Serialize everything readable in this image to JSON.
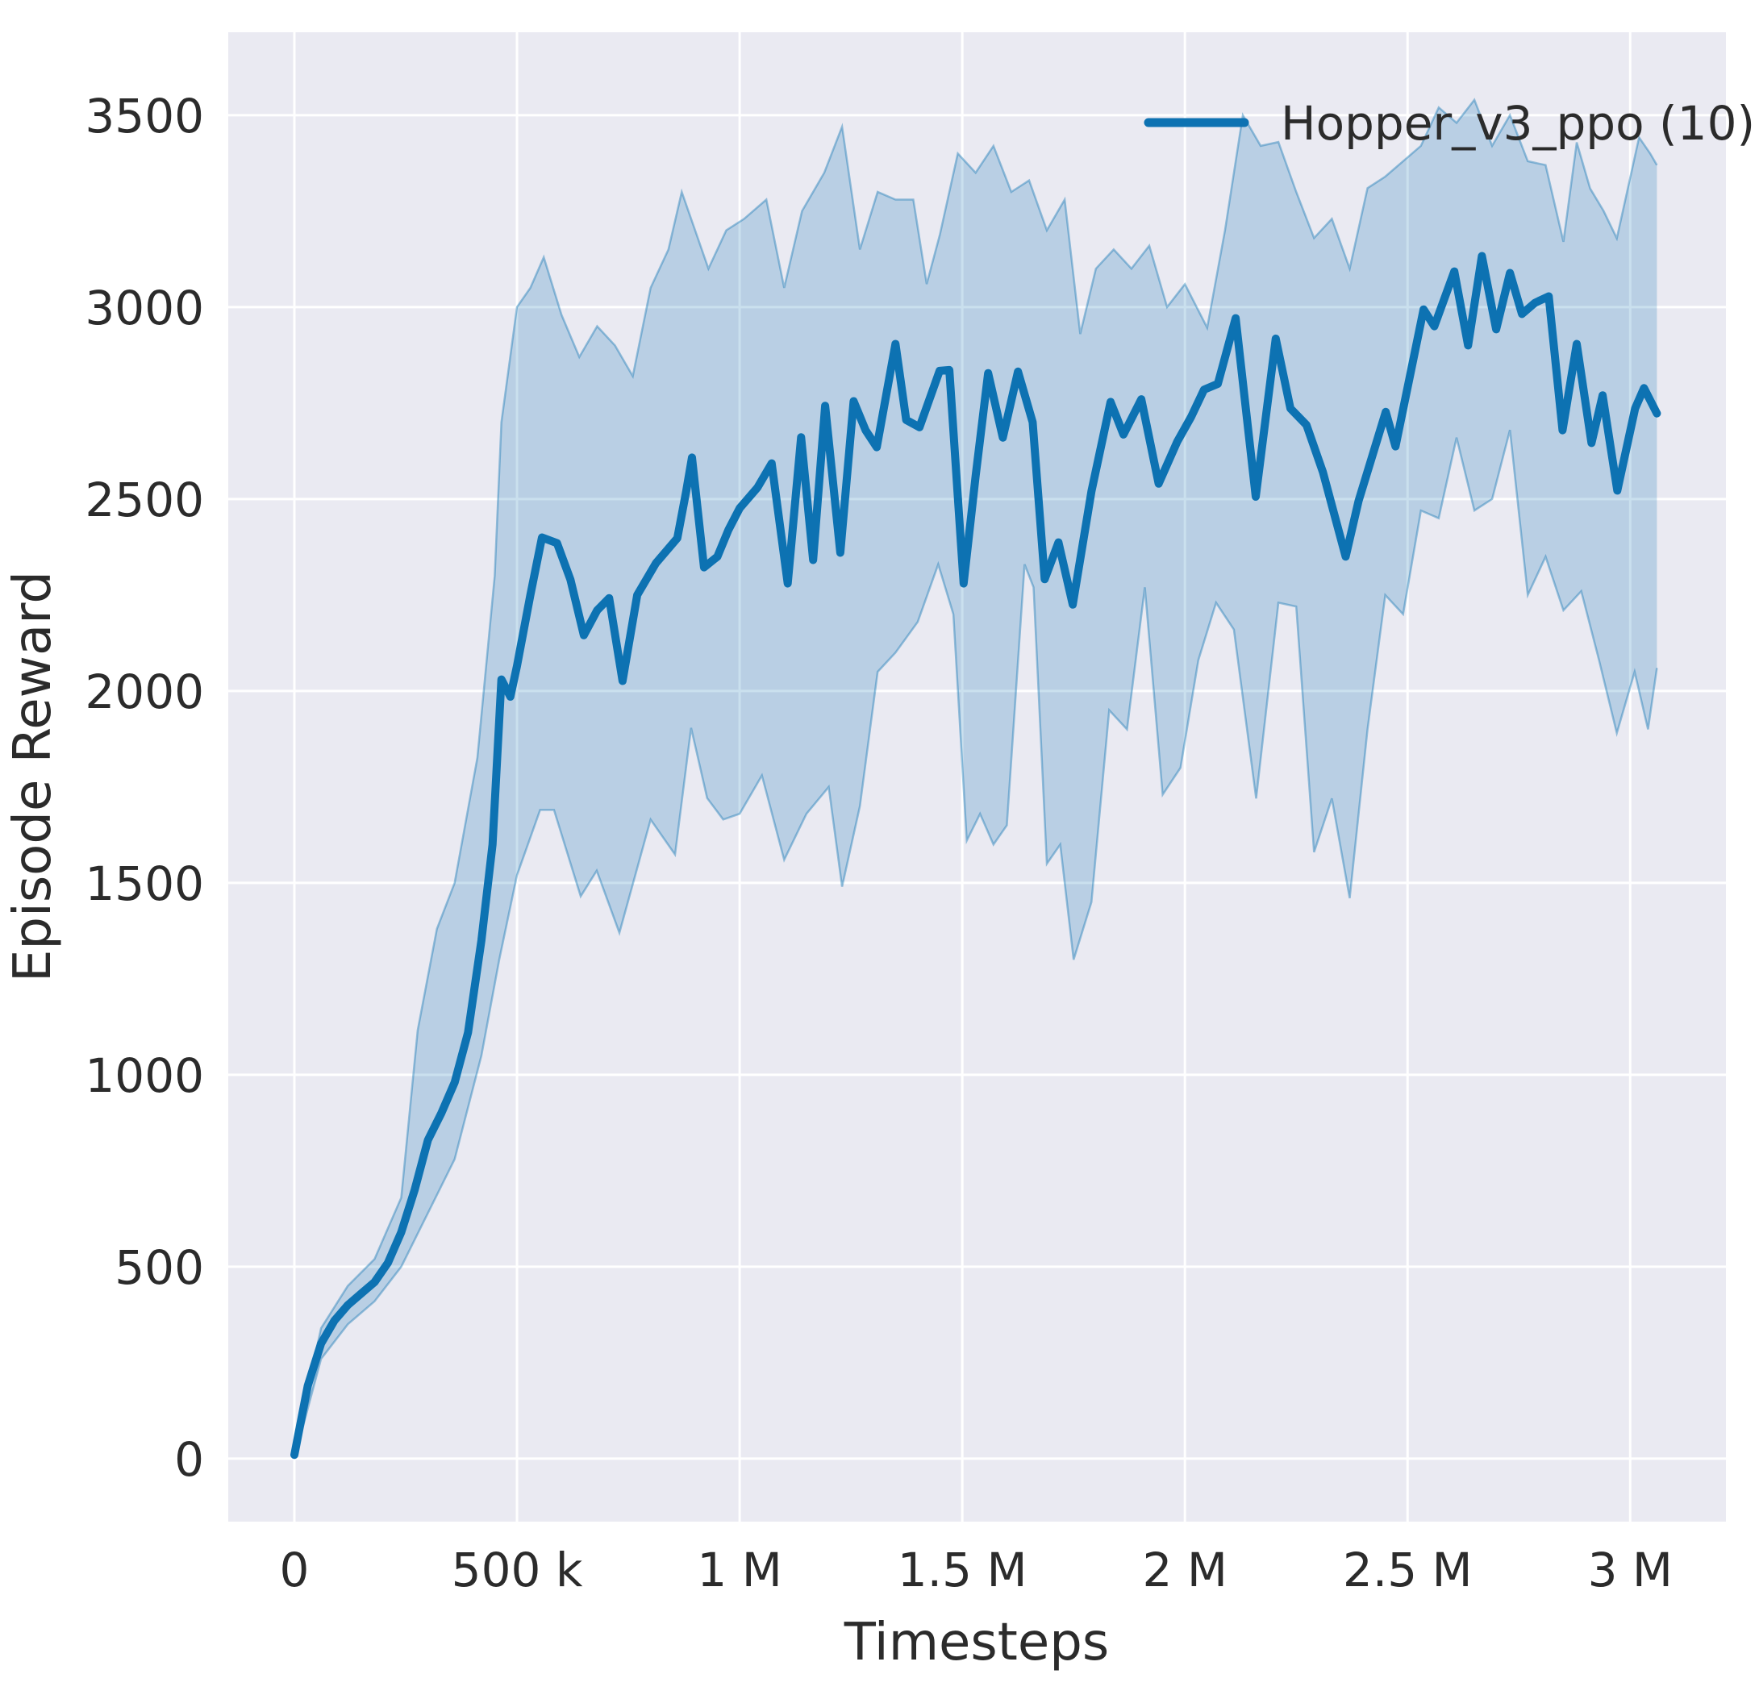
{
  "figure": {
    "background": "#ffffff",
    "plot_background": "#eaeaf2",
    "grid_color": "#ffffff",
    "text_color": "#2b2b2b",
    "accent_color": "#0d72b2"
  },
  "chart_data": {
    "type": "line",
    "title": "",
    "xlabel": "Timesteps",
    "ylabel": "Episode Reward",
    "grid": true,
    "legend": {
      "position": "upper right",
      "entries": [
        {
          "label": "Hopper_v3_ppo (10)",
          "color": "#0d72b2"
        }
      ]
    },
    "xlim": [
      -148500,
      3215000
    ],
    "ylim": [
      -164,
      3716
    ],
    "x_ticks": [
      {
        "value": 0,
        "label": "0"
      },
      {
        "value": 500000,
        "label": "500 k"
      },
      {
        "value": 1000000,
        "label": "1 M"
      },
      {
        "value": 1500000,
        "label": "1.5 M"
      },
      {
        "value": 2000000,
        "label": "2 M"
      },
      {
        "value": 2500000,
        "label": "2.5 M"
      },
      {
        "value": 3000000,
        "label": "3 M"
      }
    ],
    "y_ticks": [
      {
        "value": 0,
        "label": "0"
      },
      {
        "value": 500,
        "label": "500"
      },
      {
        "value": 1000,
        "label": "1000"
      },
      {
        "value": 1500,
        "label": "1500"
      },
      {
        "value": 2000,
        "label": "2000"
      },
      {
        "value": 2500,
        "label": "2500"
      },
      {
        "value": 3000,
        "label": "3000"
      },
      {
        "value": 3500,
        "label": "3500"
      }
    ],
    "series": [
      {
        "name": "Hopper_v3_ppo (10)",
        "color": "#0d72b2",
        "line_width": 10,
        "points": [
          [
            0,
            10
          ],
          [
            30000,
            190
          ],
          [
            60000,
            300
          ],
          [
            90000,
            360
          ],
          [
            120000,
            400
          ],
          [
            150000,
            430
          ],
          [
            180000,
            460
          ],
          [
            210000,
            510
          ],
          [
            240000,
            590
          ],
          [
            270000,
            700
          ],
          [
            300000,
            830
          ],
          [
            330000,
            900
          ],
          [
            360000,
            980
          ],
          [
            390000,
            1110
          ],
          [
            420000,
            1350
          ],
          [
            445000,
            1600
          ],
          [
            465000,
            2030
          ],
          [
            485000,
            1985
          ],
          [
            500000,
            2065
          ],
          [
            530000,
            2250
          ],
          [
            556000,
            2400
          ],
          [
            590000,
            2385
          ],
          [
            620000,
            2290
          ],
          [
            650000,
            2145
          ],
          [
            680000,
            2210
          ],
          [
            707000,
            2242
          ],
          [
            737000,
            2026
          ],
          [
            770000,
            2250
          ],
          [
            812000,
            2333
          ],
          [
            860000,
            2398
          ],
          [
            880000,
            2520
          ],
          [
            893000,
            2608
          ],
          [
            920000,
            2322
          ],
          [
            950000,
            2350
          ],
          [
            975000,
            2420
          ],
          [
            1000000,
            2476
          ],
          [
            1040000,
            2530
          ],
          [
            1072000,
            2593
          ],
          [
            1108000,
            2280
          ],
          [
            1138000,
            2661
          ],
          [
            1165000,
            2341
          ],
          [
            1192000,
            2743
          ],
          [
            1226000,
            2360
          ],
          [
            1256000,
            2755
          ],
          [
            1283000,
            2679
          ],
          [
            1308000,
            2635
          ],
          [
            1350000,
            2904
          ],
          [
            1374000,
            2706
          ],
          [
            1404000,
            2687
          ],
          [
            1449000,
            2834
          ],
          [
            1471000,
            2836
          ],
          [
            1503000,
            2280
          ],
          [
            1530000,
            2560
          ],
          [
            1558000,
            2828
          ],
          [
            1591000,
            2660
          ],
          [
            1625000,
            2832
          ],
          [
            1658000,
            2700
          ],
          [
            1685000,
            2291
          ],
          [
            1716000,
            2387
          ],
          [
            1748000,
            2225
          ],
          [
            1790000,
            2520
          ],
          [
            1833000,
            2753
          ],
          [
            1862000,
            2668
          ],
          [
            1902000,
            2760
          ],
          [
            1941000,
            2540
          ],
          [
            1983000,
            2650
          ],
          [
            2014000,
            2714
          ],
          [
            2043000,
            2785
          ],
          [
            2074000,
            2800
          ],
          [
            2114000,
            2971
          ],
          [
            2159000,
            2506
          ],
          [
            2204000,
            2918
          ],
          [
            2237000,
            2736
          ],
          [
            2273000,
            2693
          ],
          [
            2310000,
            2570
          ],
          [
            2361000,
            2350
          ],
          [
            2390000,
            2495
          ],
          [
            2451000,
            2727
          ],
          [
            2473000,
            2637
          ],
          [
            2536000,
            2994
          ],
          [
            2560000,
            2950
          ],
          [
            2605000,
            3093
          ],
          [
            2636000,
            2900
          ],
          [
            2667000,
            3133
          ],
          [
            2699000,
            2942
          ],
          [
            2730000,
            3089
          ],
          [
            2757000,
            2982
          ],
          [
            2786000,
            3011
          ],
          [
            2817000,
            3028
          ],
          [
            2848000,
            2679
          ],
          [
            2880000,
            2904
          ],
          [
            2913000,
            2646
          ],
          [
            2938000,
            2770
          ],
          [
            2971000,
            2522
          ],
          [
            3011000,
            2736
          ],
          [
            3031000,
            2789
          ],
          [
            3060000,
            2723
          ]
        ]
      }
    ],
    "band": {
      "name": "Hopper_v3_ppo (10) min-max range",
      "color": "#0d72b2",
      "fill_opacity": 0.22,
      "edge_opacity": 0.4,
      "upper": [
        [
          0,
          20
        ],
        [
          60000,
          340
        ],
        [
          120000,
          450
        ],
        [
          180000,
          520
        ],
        [
          240000,
          680
        ],
        [
          277000,
          1116
        ],
        [
          320000,
          1380
        ],
        [
          360000,
          1500
        ],
        [
          411000,
          1826
        ],
        [
          450000,
          2300
        ],
        [
          465000,
          2700
        ],
        [
          500000,
          3000
        ],
        [
          530000,
          3050
        ],
        [
          560000,
          3130
        ],
        [
          600000,
          2980
        ],
        [
          640000,
          2870
        ],
        [
          680000,
          2950
        ],
        [
          720000,
          2900
        ],
        [
          760000,
          2820
        ],
        [
          800000,
          3050
        ],
        [
          840000,
          3150
        ],
        [
          870000,
          3300
        ],
        [
          900000,
          3200
        ],
        [
          930000,
          3100
        ],
        [
          970000,
          3200
        ],
        [
          1010000,
          3230
        ],
        [
          1060000,
          3280
        ],
        [
          1100000,
          3050
        ],
        [
          1140000,
          3250
        ],
        [
          1190000,
          3350
        ],
        [
          1230000,
          3470
        ],
        [
          1270000,
          3150
        ],
        [
          1310000,
          3300
        ],
        [
          1350000,
          3280
        ],
        [
          1390000,
          3280
        ],
        [
          1420000,
          3060
        ],
        [
          1450000,
          3190
        ],
        [
          1490000,
          3400
        ],
        [
          1530000,
          3350
        ],
        [
          1570000,
          3420
        ],
        [
          1610000,
          3300
        ],
        [
          1650000,
          3330
        ],
        [
          1690000,
          3200
        ],
        [
          1730000,
          3280
        ],
        [
          1765000,
          2930
        ],
        [
          1800000,
          3100
        ],
        [
          1840000,
          3150
        ],
        [
          1880000,
          3100
        ],
        [
          1920000,
          3160
        ],
        [
          1960000,
          3000
        ],
        [
          2000000,
          3060
        ],
        [
          2050000,
          2946
        ],
        [
          2090000,
          3200
        ],
        [
          2130000,
          3500
        ],
        [
          2170000,
          3420
        ],
        [
          2210000,
          3430
        ],
        [
          2250000,
          3300
        ],
        [
          2290000,
          3180
        ],
        [
          2330000,
          3230
        ],
        [
          2370000,
          3100
        ],
        [
          2410000,
          3310
        ],
        [
          2450000,
          3340
        ],
        [
          2490000,
          3380
        ],
        [
          2530000,
          3420
        ],
        [
          2570000,
          3520
        ],
        [
          2610000,
          3480
        ],
        [
          2650000,
          3540
        ],
        [
          2690000,
          3420
        ],
        [
          2730000,
          3500
        ],
        [
          2770000,
          3380
        ],
        [
          2810000,
          3370
        ],
        [
          2850000,
          3170
        ],
        [
          2880000,
          3429
        ],
        [
          2910000,
          3309
        ],
        [
          2940000,
          3251
        ],
        [
          2970000,
          3179
        ],
        [
          3020000,
          3442
        ],
        [
          3045000,
          3400
        ],
        [
          3060000,
          3370
        ]
      ],
      "lower": [
        [
          0,
          0
        ],
        [
          60000,
          260
        ],
        [
          120000,
          350
        ],
        [
          180000,
          410
        ],
        [
          240000,
          500
        ],
        [
          300000,
          640
        ],
        [
          360000,
          780
        ],
        [
          420000,
          1050
        ],
        [
          460000,
          1300
        ],
        [
          500000,
          1520
        ],
        [
          552000,
          1690
        ],
        [
          583000,
          1690
        ],
        [
          643000,
          1465
        ],
        [
          679000,
          1532
        ],
        [
          730000,
          1370
        ],
        [
          800000,
          1665
        ],
        [
          855000,
          1574
        ],
        [
          891000,
          1904
        ],
        [
          927000,
          1721
        ],
        [
          963000,
          1665
        ],
        [
          1000000,
          1680
        ],
        [
          1050000,
          1780
        ],
        [
          1100000,
          1560
        ],
        [
          1150000,
          1680
        ],
        [
          1200000,
          1750
        ],
        [
          1230000,
          1490
        ],
        [
          1270000,
          1700
        ],
        [
          1310000,
          2050
        ],
        [
          1350000,
          2100
        ],
        [
          1400000,
          2180
        ],
        [
          1446000,
          2330
        ],
        [
          1480000,
          2200
        ],
        [
          1510000,
          1610
        ],
        [
          1540000,
          1680
        ],
        [
          1570000,
          1600
        ],
        [
          1600000,
          1650
        ],
        [
          1640000,
          2330
        ],
        [
          1660000,
          2270
        ],
        [
          1690000,
          1550
        ],
        [
          1720000,
          1600
        ],
        [
          1750000,
          1300
        ],
        [
          1790000,
          1450
        ],
        [
          1830000,
          1950
        ],
        [
          1870000,
          1900
        ],
        [
          1910000,
          2270
        ],
        [
          1950000,
          1730
        ],
        [
          1990000,
          1800
        ],
        [
          2030000,
          2080
        ],
        [
          2070000,
          2230
        ],
        [
          2110000,
          2160
        ],
        [
          2160000,
          1720
        ],
        [
          2210000,
          2230
        ],
        [
          2250000,
          2220
        ],
        [
          2290000,
          1580
        ],
        [
          2330000,
          1720
        ],
        [
          2370000,
          1460
        ],
        [
          2410000,
          1900
        ],
        [
          2450000,
          2250
        ],
        [
          2490000,
          2200
        ],
        [
          2530000,
          2470
        ],
        [
          2570000,
          2450
        ],
        [
          2610000,
          2660
        ],
        [
          2650000,
          2470
        ],
        [
          2690000,
          2500
        ],
        [
          2730000,
          2680
        ],
        [
          2770000,
          2250
        ],
        [
          2810000,
          2350
        ],
        [
          2850000,
          2210
        ],
        [
          2890000,
          2260
        ],
        [
          2930000,
          2080
        ],
        [
          2970000,
          1890
        ],
        [
          3010000,
          2050
        ],
        [
          3040000,
          1900
        ],
        [
          3060000,
          2060
        ]
      ]
    }
  }
}
